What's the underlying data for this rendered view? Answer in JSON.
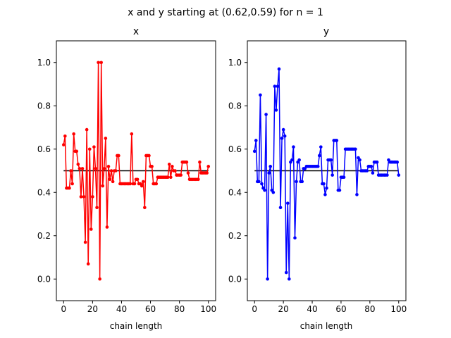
{
  "suptitle": "x and y starting at (0.62,0.59) for n = 1",
  "chart_data": [
    {
      "type": "line",
      "title": "x",
      "xlabel": "chain length",
      "ylabel": "",
      "xlim": [
        -5,
        105
      ],
      "ylim": [
        -0.1,
        1.1
      ],
      "xticks": [
        "0",
        "20",
        "40",
        "60",
        "80",
        "100"
      ],
      "yticks": [
        "0.0",
        "0.2",
        "0.4",
        "0.6",
        "0.8",
        "1.0"
      ],
      "reference_line": 0.5,
      "reference_color": "#000000",
      "grid": false,
      "series": [
        {
          "color": "#ff0000",
          "x": [
            0,
            1,
            2,
            3,
            4,
            5,
            6,
            7,
            8,
            9,
            10,
            11,
            12,
            13,
            14,
            15,
            16,
            17,
            18,
            19,
            20,
            21,
            22,
            23,
            24,
            25,
            26,
            27,
            28,
            29,
            30,
            31,
            32,
            33,
            34,
            35,
            36,
            37,
            38,
            39,
            40,
            41,
            42,
            43,
            44,
            45,
            46,
            47,
            48,
            49,
            50,
            51,
            52,
            53,
            54,
            55,
            56,
            57,
            58,
            59,
            60,
            61,
            62,
            63,
            64,
            65,
            66,
            67,
            68,
            69,
            70,
            71,
            72,
            73,
            74,
            75,
            76,
            77,
            78,
            79,
            80,
            81,
            82,
            83,
            84,
            85,
            86,
            87,
            88,
            89,
            90,
            91,
            92,
            93,
            94,
            95,
            96,
            97,
            98,
            99,
            100
          ],
          "y": [
            0.62,
            0.66,
            0.42,
            0.42,
            0.42,
            0.5,
            0.44,
            0.67,
            0.59,
            0.59,
            0.53,
            0.51,
            0.38,
            0.51,
            0.38,
            0.17,
            0.69,
            0.07,
            0.6,
            0.23,
            0.38,
            0.61,
            0.51,
            0.33,
            1.0,
            0.0,
            1.0,
            0.43,
            0.51,
            0.65,
            0.24,
            0.52,
            0.46,
            0.5,
            0.45,
            0.5,
            0.5,
            0.57,
            0.57,
            0.44,
            0.44,
            0.44,
            0.44,
            0.44,
            0.44,
            0.44,
            0.44,
            0.67,
            0.44,
            0.44,
            0.46,
            0.46,
            0.44,
            0.44,
            0.43,
            0.45,
            0.33,
            0.57,
            0.57,
            0.57,
            0.52,
            0.52,
            0.44,
            0.44,
            0.44,
            0.47,
            0.47,
            0.47,
            0.47,
            0.47,
            0.47,
            0.47,
            0.47,
            0.53,
            0.47,
            0.52,
            0.5,
            0.5,
            0.48,
            0.48,
            0.48,
            0.48,
            0.54,
            0.54,
            0.54,
            0.54,
            0.49,
            0.46,
            0.46,
            0.46,
            0.46,
            0.46,
            0.46,
            0.46,
            0.54,
            0.49,
            0.49,
            0.49,
            0.49,
            0.49,
            0.52
          ]
        }
      ]
    },
    {
      "type": "line",
      "title": "y",
      "xlabel": "chain length",
      "ylabel": "",
      "xlim": [
        -5,
        105
      ],
      "ylim": [
        -0.1,
        1.1
      ],
      "xticks": [
        "0",
        "20",
        "40",
        "60",
        "80",
        "100"
      ],
      "yticks": [
        "0.0",
        "0.2",
        "0.4",
        "0.6",
        "0.8",
        "1.0"
      ],
      "reference_line": 0.5,
      "reference_color": "#000000",
      "grid": false,
      "series": [
        {
          "color": "#0000ff",
          "x": [
            0,
            1,
            2,
            3,
            4,
            5,
            6,
            7,
            8,
            9,
            10,
            11,
            12,
            13,
            14,
            15,
            16,
            17,
            18,
            19,
            20,
            21,
            22,
            23,
            24,
            25,
            26,
            27,
            28,
            29,
            30,
            31,
            32,
            33,
            34,
            35,
            36,
            37,
            38,
            39,
            40,
            41,
            42,
            43,
            44,
            45,
            46,
            47,
            48,
            49,
            50,
            51,
            52,
            53,
            54,
            55,
            56,
            57,
            58,
            59,
            60,
            61,
            62,
            63,
            64,
            65,
            66,
            67,
            68,
            69,
            70,
            71,
            72,
            73,
            74,
            75,
            76,
            77,
            78,
            79,
            80,
            81,
            82,
            83,
            84,
            85,
            86,
            87,
            88,
            89,
            90,
            91,
            92,
            93,
            94,
            95,
            96,
            97,
            98,
            99,
            100
          ],
          "y": [
            0.59,
            0.64,
            0.45,
            0.45,
            0.85,
            0.44,
            0.42,
            0.41,
            0.76,
            0.0,
            0.49,
            0.52,
            0.41,
            0.4,
            0.89,
            0.78,
            0.89,
            0.97,
            0.33,
            0.65,
            0.69,
            0.66,
            0.03,
            0.35,
            0.0,
            0.54,
            0.55,
            0.61,
            0.19,
            0.45,
            0.54,
            0.55,
            0.45,
            0.45,
            0.51,
            0.51,
            0.52,
            0.52,
            0.52,
            0.52,
            0.52,
            0.52,
            0.52,
            0.52,
            0.52,
            0.57,
            0.61,
            0.44,
            0.44,
            0.39,
            0.42,
            0.55,
            0.55,
            0.55,
            0.48,
            0.64,
            0.64,
            0.64,
            0.41,
            0.41,
            0.47,
            0.47,
            0.47,
            0.6,
            0.6,
            0.6,
            0.6,
            0.6,
            0.6,
            0.6,
            0.6,
            0.39,
            0.56,
            0.55,
            0.5,
            0.5,
            0.5,
            0.5,
            0.5,
            0.52,
            0.52,
            0.52,
            0.49,
            0.54,
            0.54,
            0.54,
            0.48,
            0.48,
            0.48,
            0.48,
            0.48,
            0.48,
            0.48,
            0.55,
            0.54,
            0.54,
            0.54,
            0.54,
            0.54,
            0.54,
            0.48
          ]
        }
      ]
    }
  ]
}
